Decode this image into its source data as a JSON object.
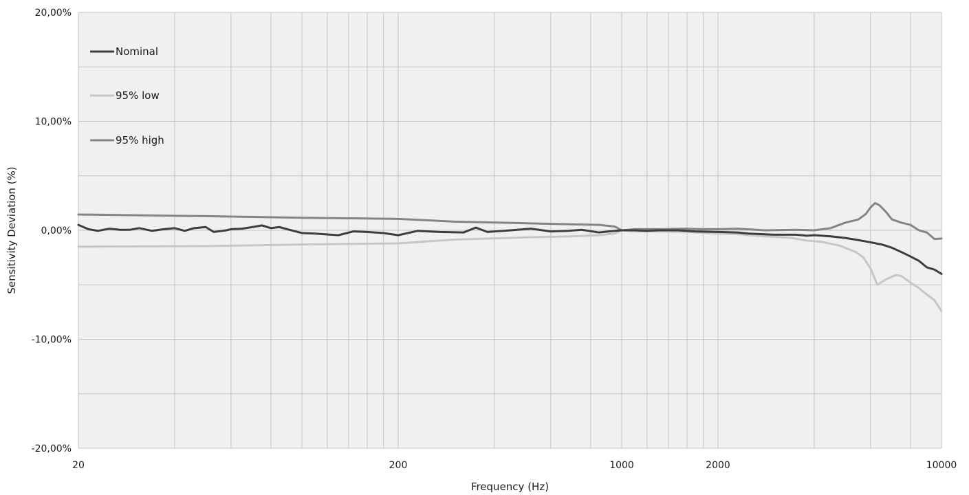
{
  "chart_data": {
    "type": "line",
    "title": "",
    "xlabel": "Frequency (Hz)",
    "ylabel": "Sensitivity Deviation (%)",
    "xscale": "log",
    "xlim": [
      20,
      10000
    ],
    "ylim": [
      -20,
      20
    ],
    "x_tick_labels": [
      {
        "value": 20,
        "label": "20"
      },
      {
        "value": 200,
        "label": "200"
      },
      {
        "value": 1000,
        "label": "1000"
      },
      {
        "value": 2000,
        "label": "2000"
      },
      {
        "value": 10000,
        "label": "10000"
      }
    ],
    "y_tick_labels": [
      {
        "value": 20,
        "label": "20,00%"
      },
      {
        "value": 10,
        "label": "10,00%"
      },
      {
        "value": 0,
        "label": "0,00%"
      },
      {
        "value": -10,
        "label": "-10,00%"
      },
      {
        "value": -20,
        "label": "-20,00%"
      }
    ],
    "x_gridlines": [
      20,
      40,
      60,
      80,
      100,
      120,
      140,
      160,
      180,
      200,
      400,
      600,
      800,
      1000,
      1200,
      1400,
      1600,
      1800,
      2000,
      4000,
      6000,
      8000,
      10000
    ],
    "y_gridlines": [
      -20,
      -15,
      -10,
      -5,
      0,
      5,
      10,
      15,
      20
    ],
    "grid": true,
    "legend_position": "top-left",
    "colors": {
      "plot_background": "#f0f0f0",
      "grid": "#c4c4c4",
      "nominal": "#3d3d3d",
      "low": "#c6c6c6",
      "high": "#858585"
    },
    "series": [
      {
        "name": "Nominal",
        "color": "#3d3d3d",
        "points": [
          [
            20,
            0.5
          ],
          [
            21.5,
            0.1
          ],
          [
            23,
            -0.05
          ],
          [
            25,
            0.15
          ],
          [
            27,
            0.05
          ],
          [
            29,
            0.05
          ],
          [
            31,
            0.2
          ],
          [
            34,
            -0.05
          ],
          [
            37,
            0.1
          ],
          [
            40,
            0.2
          ],
          [
            43,
            -0.05
          ],
          [
            46,
            0.2
          ],
          [
            50,
            0.3
          ],
          [
            53,
            -0.15
          ],
          [
            58,
            0.0
          ],
          [
            60,
            0.1
          ],
          [
            65,
            0.15
          ],
          [
            70,
            0.3
          ],
          [
            75,
            0.45
          ],
          [
            80,
            0.2
          ],
          [
            85,
            0.3
          ],
          [
            90,
            0.1
          ],
          [
            100,
            -0.25
          ],
          [
            110,
            -0.3
          ],
          [
            130,
            -0.45
          ],
          [
            145,
            -0.1
          ],
          [
            160,
            -0.15
          ],
          [
            180,
            -0.25
          ],
          [
            200,
            -0.45
          ],
          [
            230,
            -0.05
          ],
          [
            270,
            -0.15
          ],
          [
            320,
            -0.2
          ],
          [
            350,
            0.25
          ],
          [
            380,
            -0.15
          ],
          [
            450,
            0.0
          ],
          [
            520,
            0.15
          ],
          [
            600,
            -0.1
          ],
          [
            680,
            -0.05
          ],
          [
            750,
            0.05
          ],
          [
            850,
            -0.2
          ],
          [
            950,
            -0.05
          ],
          [
            1000,
            0.0
          ],
          [
            1100,
            0.0
          ],
          [
            1200,
            -0.05
          ],
          [
            1300,
            0.0
          ],
          [
            1500,
            0.0
          ],
          [
            1700,
            -0.1
          ],
          [
            2000,
            -0.15
          ],
          [
            2300,
            -0.2
          ],
          [
            2500,
            -0.3
          ],
          [
            3000,
            -0.4
          ],
          [
            3500,
            -0.4
          ],
          [
            3800,
            -0.5
          ],
          [
            4000,
            -0.45
          ],
          [
            4500,
            -0.55
          ],
          [
            5000,
            -0.7
          ],
          [
            5500,
            -0.9
          ],
          [
            6000,
            -1.1
          ],
          [
            6500,
            -1.3
          ],
          [
            7000,
            -1.6
          ],
          [
            7500,
            -2.0
          ],
          [
            8000,
            -2.4
          ],
          [
            8500,
            -2.8
          ],
          [
            9000,
            -3.4
          ],
          [
            9500,
            -3.6
          ],
          [
            10000,
            -4.0
          ]
        ]
      },
      {
        "name": "95% low",
        "color": "#c6c6c6",
        "points": [
          [
            20,
            -1.5
          ],
          [
            50,
            -1.45
          ],
          [
            100,
            -1.3
          ],
          [
            200,
            -1.2
          ],
          [
            300,
            -0.85
          ],
          [
            500,
            -0.65
          ],
          [
            700,
            -0.55
          ],
          [
            850,
            -0.45
          ],
          [
            950,
            -0.3
          ],
          [
            1000,
            0.0
          ],
          [
            1100,
            -0.1
          ],
          [
            1300,
            -0.1
          ],
          [
            1600,
            -0.15
          ],
          [
            2000,
            -0.3
          ],
          [
            2300,
            -0.35
          ],
          [
            2500,
            -0.45
          ],
          [
            2800,
            -0.55
          ],
          [
            3000,
            -0.6
          ],
          [
            3400,
            -0.7
          ],
          [
            3800,
            -0.95
          ],
          [
            4200,
            -1.05
          ],
          [
            4800,
            -1.4
          ],
          [
            5400,
            -2.0
          ],
          [
            5700,
            -2.5
          ],
          [
            6000,
            -3.5
          ],
          [
            6300,
            -5.0
          ],
          [
            6700,
            -4.5
          ],
          [
            7200,
            -4.1
          ],
          [
            7500,
            -4.2
          ],
          [
            8000,
            -4.8
          ],
          [
            8500,
            -5.3
          ],
          [
            9000,
            -5.9
          ],
          [
            9500,
            -6.4
          ],
          [
            10000,
            -7.4
          ]
        ]
      },
      {
        "name": "95% high",
        "color": "#858585",
        "points": [
          [
            20,
            1.45
          ],
          [
            50,
            1.3
          ],
          [
            100,
            1.15
          ],
          [
            200,
            1.05
          ],
          [
            300,
            0.8
          ],
          [
            500,
            0.65
          ],
          [
            700,
            0.55
          ],
          [
            850,
            0.5
          ],
          [
            950,
            0.35
          ],
          [
            1000,
            0.0
          ],
          [
            1100,
            0.1
          ],
          [
            1300,
            0.1
          ],
          [
            1600,
            0.15
          ],
          [
            1800,
            0.1
          ],
          [
            2000,
            0.1
          ],
          [
            2300,
            0.15
          ],
          [
            2800,
            0.0
          ],
          [
            3500,
            0.05
          ],
          [
            4000,
            0.0
          ],
          [
            4500,
            0.2
          ],
          [
            5000,
            0.7
          ],
          [
            5500,
            1.0
          ],
          [
            5800,
            1.5
          ],
          [
            6000,
            2.1
          ],
          [
            6200,
            2.5
          ],
          [
            6400,
            2.3
          ],
          [
            6700,
            1.7
          ],
          [
            7000,
            1.0
          ],
          [
            7500,
            0.7
          ],
          [
            8000,
            0.5
          ],
          [
            8500,
            0.0
          ],
          [
            9000,
            -0.2
          ],
          [
            9500,
            -0.8
          ],
          [
            10000,
            -0.75
          ]
        ]
      }
    ]
  }
}
